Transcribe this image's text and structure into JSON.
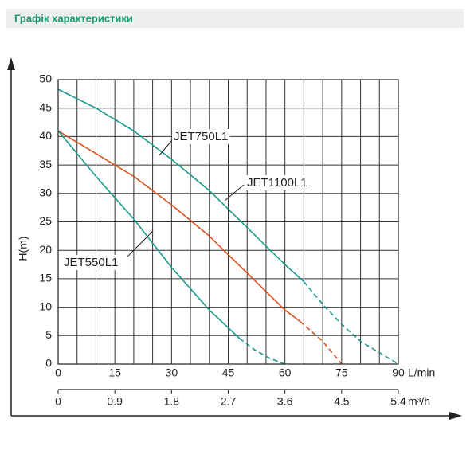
{
  "header": {
    "title": "Графік характеристики"
  },
  "chart_data": {
    "type": "line",
    "xlabel": "L/min",
    "x2label": "m³/h",
    "ylabel": "H(m)",
    "xlim": [
      0,
      90
    ],
    "xticks": [
      0,
      15,
      30,
      45,
      60,
      75,
      90
    ],
    "xgrid": [
      0,
      5,
      10,
      15,
      20,
      25,
      30,
      35,
      40,
      45,
      50,
      55,
      60,
      65,
      70,
      75,
      80,
      85,
      90
    ],
    "x2lim": [
      0,
      5.4
    ],
    "x2ticks": [
      0,
      0.9,
      1.8,
      2.7,
      3.6,
      4.5,
      5.4
    ],
    "ylim": [
      0,
      50
    ],
    "yticks": [
      0,
      5,
      10,
      15,
      20,
      25,
      30,
      35,
      40,
      45,
      50
    ],
    "grid": true,
    "series": [
      {
        "name": "JET750L1",
        "color": "#1a9a8c",
        "dashed_from": 65,
        "x": [
          0,
          10,
          20,
          30,
          40,
          50,
          60,
          65,
          70,
          75,
          80,
          85,
          90
        ],
        "values": [
          48.3,
          45,
          41,
          36,
          30.5,
          24,
          17.5,
          14.5,
          10.5,
          7,
          4,
          2,
          0
        ]
      },
      {
        "name": "JET1100L1",
        "color": "#d9541e",
        "dashed_from": 64,
        "x": [
          0,
          10,
          20,
          30,
          40,
          50,
          60,
          64,
          70,
          75
        ],
        "values": [
          41,
          37,
          33,
          28,
          22.5,
          16,
          9.5,
          7.5,
          4,
          0
        ]
      },
      {
        "name": "JET550L1",
        "color": "#1a9a8c",
        "dashed_from": 48,
        "x": [
          0,
          10,
          20,
          30,
          40,
          48,
          52,
          56,
          60
        ],
        "values": [
          41,
          33,
          25.5,
          17,
          9.5,
          4.5,
          2.5,
          1,
          0
        ]
      }
    ]
  }
}
